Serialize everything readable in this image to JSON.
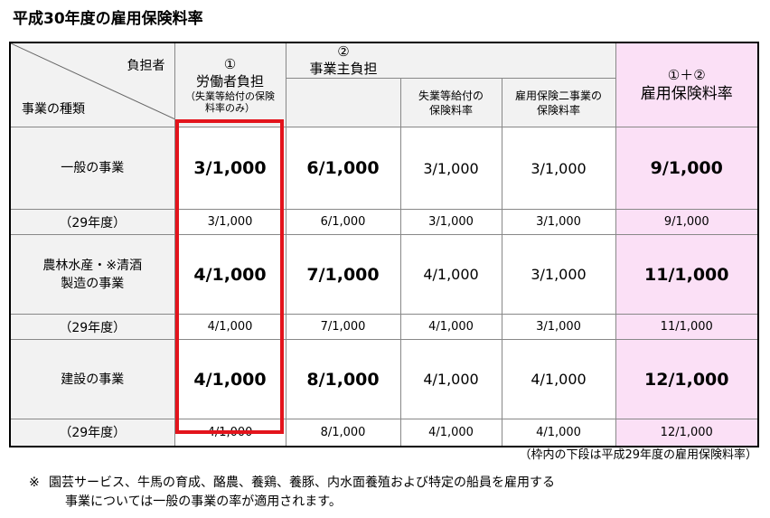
{
  "title": "平成30年度の雇用保険料率",
  "header": {
    "corner_top": "負担者",
    "corner_bottom": "事業の種類",
    "worker_num": "①",
    "worker_label": "労働者負担",
    "worker_sub": "（失業等給付の保険料率のみ）",
    "employer_num": "②",
    "employer_label": "事業主負担",
    "employer_sub1": "失業等給付の保険料率",
    "employer_sub2": "雇用保険二事業の保険料率",
    "total_num": "①＋②",
    "total_label": "雇用保険料率"
  },
  "rows": [
    {
      "kind": "一般の事業",
      "current": {
        "worker": "3/1,000",
        "employer": "6/1,000",
        "sub1": "3/1,000",
        "sub2": "3/1,000",
        "total": "9/1,000"
      },
      "prev_label": "（29年度）",
      "prev": {
        "worker": "3/1,000",
        "employer": "6/1,000",
        "sub1": "3/1,000",
        "sub2": "3/1,000",
        "total": "9/1,000"
      }
    },
    {
      "kind": "農林水産・※清酒製造の事業",
      "current": {
        "worker": "4/1,000",
        "employer": "7/1,000",
        "sub1": "4/1,000",
        "sub2": "3/1,000",
        "total": "11/1,000"
      },
      "prev_label": "（29年度）",
      "prev": {
        "worker": "4/1,000",
        "employer": "7/1,000",
        "sub1": "4/1,000",
        "sub2": "3/1,000",
        "total": "11/1,000"
      }
    },
    {
      "kind": "建設の事業",
      "current": {
        "worker": "4/1,000",
        "employer": "8/1,000",
        "sub1": "4/1,000",
        "sub2": "4/1,000",
        "total": "12/1,000"
      },
      "prev_label": "（29年度）",
      "prev": {
        "worker": "4/1,000",
        "employer": "8/1,000",
        "sub1": "4/1,000",
        "sub2": "4/1,000",
        "total": "12/1,000"
      }
    }
  ],
  "note_right": "（枠内の下段は平成29年度の雇用保険料率）",
  "footnote": {
    "mark": "※",
    "line1": "園芸サービス、牛馬の育成、酪農、養鶏、養豚、内水面養殖および特定の船員を雇用する",
    "line2": "事業については一般の事業の率が適用されます。"
  },
  "colors": {
    "highlight_border": "#e3141c",
    "total_column": "#fbe0f6",
    "header_gray": "#f2f2f2"
  }
}
